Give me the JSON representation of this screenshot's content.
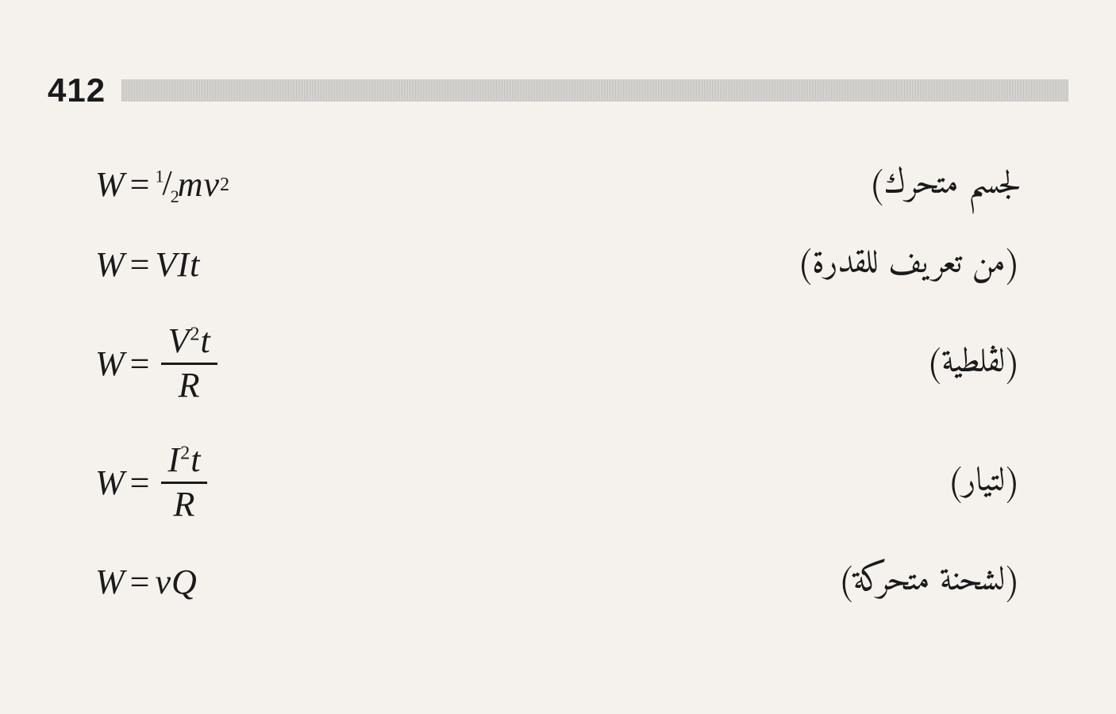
{
  "page_number": "412",
  "background_color": "#f5f2ed",
  "text_color": "#1a1a1a",
  "rule_color": "#b8b8b8",
  "equation_fontsize": 44,
  "label_fontsize": 42,
  "page_number_fontsize": 42,
  "rows": [
    {
      "type": "inline",
      "equation": {
        "raw": "W = ½mv²",
        "W": "W",
        "rhs": "½mv²"
      },
      "label": "لجسم متحرك)"
    },
    {
      "type": "inline",
      "equation": {
        "raw": "W = VIt",
        "W": "W",
        "rhs": "VIt"
      },
      "label": "(من تعريف للقدرة)"
    },
    {
      "type": "fraction",
      "equation": {
        "raw": "W = V²t / R",
        "W": "W",
        "num": "V²t",
        "den": "R"
      },
      "label": "(لڤلطية)"
    },
    {
      "type": "fraction",
      "equation": {
        "raw": "W = I²t / R",
        "W": "W",
        "num": "I²t",
        "den": "R"
      },
      "label": "(لتيار)"
    },
    {
      "type": "inline",
      "equation": {
        "raw": "W = vQ",
        "W": "W",
        "rhs": "vQ"
      },
      "label": "(لشحنة متحركة)"
    }
  ]
}
